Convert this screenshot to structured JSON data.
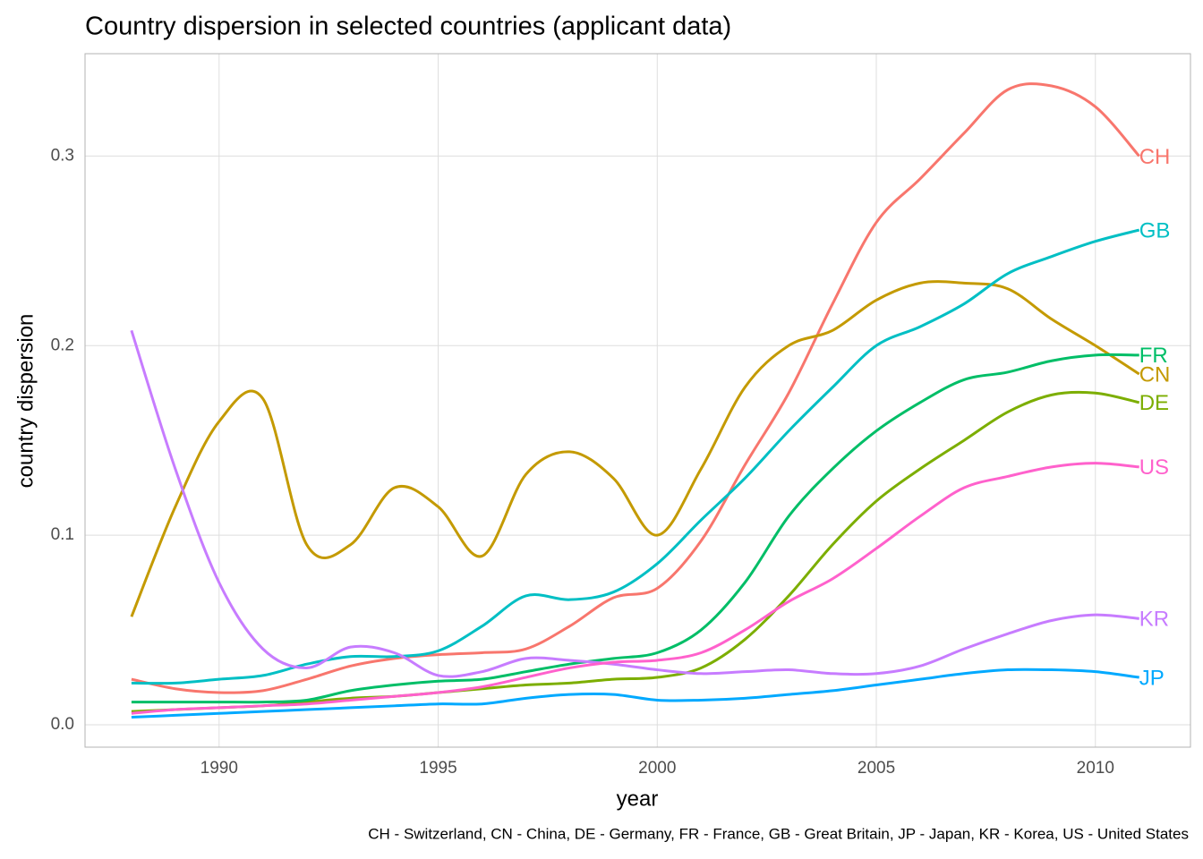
{
  "chart_data": {
    "type": "line",
    "title": "Country dispersion in selected countries (applicant data)",
    "xlabel": "year",
    "ylabel": "country dispersion",
    "caption": "CH - Switzerland, CN - China, DE - Germany, FR - France, GB - Great Britain, JP - Japan, KR - Korea, US - United States",
    "x": [
      1988,
      1989,
      1990,
      1991,
      1992,
      1993,
      1994,
      1995,
      1996,
      1997,
      1998,
      1999,
      2000,
      2001,
      2002,
      2003,
      2004,
      2005,
      2006,
      2007,
      2008,
      2009,
      2010,
      2011
    ],
    "series": [
      {
        "name": "CH",
        "color": "#F8766D",
        "values": [
          0.024,
          0.019,
          0.017,
          0.018,
          0.024,
          0.031,
          0.035,
          0.037,
          0.038,
          0.04,
          0.052,
          0.067,
          0.072,
          0.097,
          0.137,
          0.175,
          0.222,
          0.265,
          0.288,
          0.312,
          0.335,
          0.337,
          0.326,
          0.3
        ]
      },
      {
        "name": "CN",
        "color": "#C49A00",
        "values": [
          0.057,
          0.115,
          0.16,
          0.172,
          0.095,
          0.095,
          0.125,
          0.115,
          0.089,
          0.132,
          0.144,
          0.13,
          0.1,
          0.135,
          0.178,
          0.2,
          0.208,
          0.224,
          0.233,
          0.233,
          0.23,
          0.214,
          0.2,
          0.185
        ]
      },
      {
        "name": "DE",
        "color": "#7CAE00",
        "values": [
          0.007,
          0.008,
          0.009,
          0.01,
          0.012,
          0.014,
          0.015,
          0.017,
          0.019,
          0.021,
          0.022,
          0.024,
          0.025,
          0.03,
          0.045,
          0.068,
          0.095,
          0.118,
          0.135,
          0.15,
          0.165,
          0.174,
          0.175,
          0.17
        ]
      },
      {
        "name": "FR",
        "color": "#00BE67",
        "values": [
          0.012,
          0.012,
          0.012,
          0.012,
          0.013,
          0.018,
          0.021,
          0.023,
          0.024,
          0.028,
          0.032,
          0.035,
          0.038,
          0.05,
          0.075,
          0.11,
          0.135,
          0.155,
          0.17,
          0.182,
          0.186,
          0.192,
          0.195,
          0.195
        ]
      },
      {
        "name": "GB",
        "color": "#00BFC4",
        "values": [
          0.022,
          0.022,
          0.024,
          0.026,
          0.032,
          0.036,
          0.036,
          0.039,
          0.052,
          0.068,
          0.066,
          0.07,
          0.085,
          0.108,
          0.13,
          0.155,
          0.178,
          0.2,
          0.21,
          0.222,
          0.238,
          0.247,
          0.255,
          0.261
        ]
      },
      {
        "name": "JP",
        "color": "#00A9FF",
        "values": [
          0.004,
          0.005,
          0.006,
          0.007,
          0.008,
          0.009,
          0.01,
          0.011,
          0.011,
          0.014,
          0.016,
          0.016,
          0.013,
          0.013,
          0.014,
          0.016,
          0.018,
          0.021,
          0.024,
          0.027,
          0.029,
          0.029,
          0.028,
          0.025
        ]
      },
      {
        "name": "KR",
        "color": "#C77CFF",
        "values": [
          0.208,
          0.135,
          0.075,
          0.04,
          0.03,
          0.041,
          0.038,
          0.026,
          0.028,
          0.035,
          0.034,
          0.032,
          0.029,
          0.027,
          0.028,
          0.029,
          0.027,
          0.027,
          0.031,
          0.04,
          0.048,
          0.055,
          0.058,
          0.056
        ]
      },
      {
        "name": "US",
        "color": "#FF61CC",
        "values": [
          0.006,
          0.008,
          0.009,
          0.01,
          0.011,
          0.013,
          0.015,
          0.017,
          0.02,
          0.025,
          0.03,
          0.033,
          0.034,
          0.038,
          0.05,
          0.065,
          0.077,
          0.093,
          0.11,
          0.125,
          0.131,
          0.136,
          0.138,
          0.136
        ]
      }
    ],
    "xlim": [
      1986.94,
      2012.17
    ],
    "ylim": [
      -0.0118,
      0.354
    ],
    "xticks": [
      1990,
      1995,
      2000,
      2005,
      2010
    ],
    "yticks": [
      {
        "value": 0,
        "label": "0.0"
      },
      0.1,
      0.2,
      0.3
    ],
    "grid": true
  }
}
